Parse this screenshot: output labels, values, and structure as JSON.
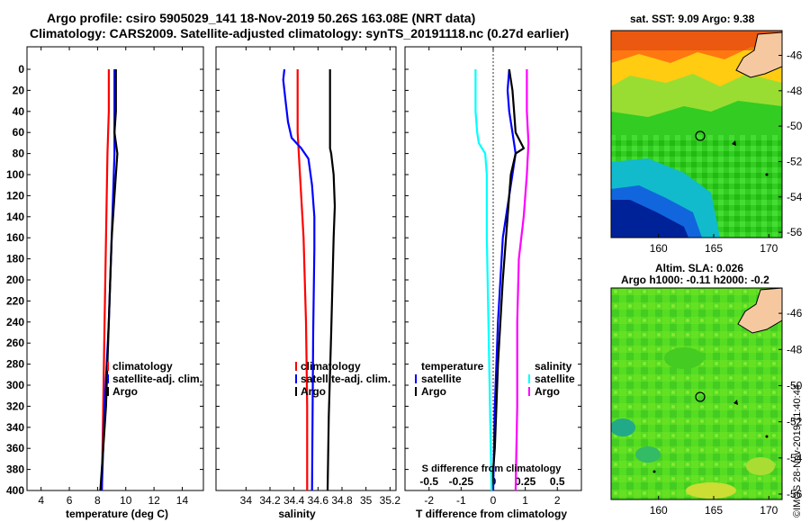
{
  "title_line1": "Argo profile: csiro 5905029_141 18-Nov-2019 50.26S 163.08E (NRT data)",
  "title_line2": "Climatology: CARS2009. Satellite-adjusted climatology: synTS_20191118.nc (0.27d earlier)",
  "depth_ticks": [
    0,
    20,
    40,
    60,
    80,
    100,
    120,
    140,
    160,
    180,
    200,
    220,
    240,
    260,
    280,
    300,
    320,
    340,
    360,
    380,
    400
  ],
  "colors": {
    "red": "#ff0000",
    "blue": "#0000ff",
    "black": "#000000",
    "cyan": "#00ffff",
    "magenta": "#ff00ff"
  },
  "chart_data": [
    {
      "type": "line",
      "xlabel": "temperature (deg C)",
      "ylabel": "depth",
      "xlim": [
        3,
        15.5
      ],
      "ylim": [
        400,
        0
      ],
      "xticks": [
        4,
        6,
        8,
        10,
        12,
        14
      ],
      "legend": [
        "climatology",
        "satellite-adj. clim.",
        "Argo"
      ],
      "series": [
        {
          "name": "climatology",
          "color": "#ff0000",
          "depth": [
            0,
            40,
            80,
            160,
            240,
            320,
            400
          ],
          "values": [
            8.8,
            8.8,
            8.7,
            8.6,
            8.5,
            8.4,
            8.3
          ]
        },
        {
          "name": "satellite-adj. clim.",
          "color": "#0000ff",
          "depth": [
            0,
            40,
            80,
            160,
            240,
            320,
            400
          ],
          "values": [
            9.2,
            9.2,
            9.2,
            9.0,
            8.8,
            8.5,
            8.3
          ]
        },
        {
          "name": "Argo",
          "color": "#000000",
          "depth": [
            0,
            40,
            60,
            80,
            120,
            160,
            240,
            320,
            360,
            400
          ],
          "values": [
            9.3,
            9.3,
            9.2,
            9.4,
            9.2,
            9.0,
            8.8,
            8.6,
            8.4,
            8.2
          ]
        }
      ]
    },
    {
      "type": "line",
      "xlabel": "salinity",
      "ylabel": "depth",
      "xlim": [
        33.75,
        35.25
      ],
      "ylim": [
        400,
        0
      ],
      "xticks": [
        34,
        34.2,
        34.4,
        34.6,
        34.8,
        35,
        35.2
      ],
      "xtick_labels": [
        "34",
        "34.2",
        "34.4",
        "34.6",
        "34.8",
        "35",
        "35.2"
      ],
      "legend": [
        "climatology",
        "satellite-adj. clim.",
        "Argo"
      ],
      "series": [
        {
          "name": "climatology",
          "color": "#ff0000",
          "depth": [
            0,
            40,
            60,
            80,
            100,
            140,
            160,
            240,
            320,
            400
          ],
          "values": [
            34.43,
            34.43,
            34.43,
            34.44,
            34.45,
            34.47,
            34.48,
            34.5,
            34.51,
            34.51
          ]
        },
        {
          "name": "satellite-adj. clim.",
          "color": "#0000ff",
          "depth": [
            0,
            10,
            30,
            50,
            65,
            75,
            85,
            110,
            140,
            170,
            250,
            400
          ],
          "values": [
            34.32,
            34.31,
            34.33,
            34.35,
            34.38,
            34.46,
            34.52,
            34.55,
            34.57,
            34.57,
            34.56,
            34.55
          ]
        },
        {
          "name": "Argo",
          "color": "#000000",
          "depth": [
            0,
            50,
            75,
            80,
            100,
            130,
            160,
            250,
            330,
            400
          ],
          "values": [
            34.7,
            34.7,
            34.7,
            34.71,
            34.73,
            34.74,
            34.73,
            34.71,
            34.69,
            34.68
          ]
        }
      ]
    },
    {
      "type": "line",
      "xlabel": "T difference from climatology",
      "ylabel": "depth",
      "xlim": [
        -2.75,
        2.75
      ],
      "ylim": [
        400,
        0
      ],
      "xticks": [
        -2,
        -1,
        0,
        1,
        2
      ],
      "xtick_labels": [
        "-2",
        "-1",
        "0",
        "1",
        "2"
      ],
      "secondary_xlabel": "S difference from climatology",
      "secondary_xticks": [
        "-0.5",
        "-0.25",
        "0",
        "0.25",
        "0.5"
      ],
      "legend_temperature": {
        "title": "temperature",
        "items": [
          "satellite",
          "Argo"
        ]
      },
      "legend_salinity": {
        "title": "salinity",
        "items": [
          "satellite",
          "Argo"
        ]
      },
      "series": [
        {
          "name": "T satellite",
          "color": "#0000ff",
          "depth": [
            0,
            20,
            40,
            60,
            80,
            120,
            160,
            240,
            320,
            400
          ],
          "values": [
            0.5,
            0.45,
            0.5,
            0.6,
            0.7,
            0.5,
            0.3,
            0.15,
            0.05,
            0.0
          ]
        },
        {
          "name": "T Argo",
          "color": "#000000",
          "depth": [
            0,
            20,
            40,
            60,
            75,
            80,
            100,
            140,
            200,
            280,
            360,
            400
          ],
          "values": [
            0.5,
            0.6,
            0.65,
            0.7,
            0.95,
            0.7,
            0.55,
            0.45,
            0.3,
            0.15,
            0.05,
            -0.05
          ]
        },
        {
          "name": "S satellite",
          "color": "#00ffff",
          "depth": [
            0,
            20,
            40,
            60,
            70,
            80,
            100,
            160,
            240,
            320,
            400
          ],
          "values": [
            -0.55,
            -0.55,
            -0.55,
            -0.5,
            -0.45,
            -0.25,
            -0.2,
            -0.2,
            -0.15,
            -0.1,
            -0.05
          ]
        },
        {
          "name": "S Argo",
          "color": "#ff00ff",
          "depth": [
            0,
            40,
            70,
            100,
            140,
            180,
            240,
            320,
            400
          ],
          "values": [
            1.05,
            1.05,
            1.1,
            1.05,
            0.95,
            0.8,
            0.75,
            0.75,
            0.7
          ]
        }
      ]
    },
    {
      "type": "heatmap",
      "title": "sat. SST: 9.09 Argo: 9.38",
      "xticks": [
        160,
        165,
        170
      ],
      "yticks": [
        -46,
        -48,
        -50,
        -52,
        -54,
        -56
      ],
      "xlim": [
        155.7,
        171.2
      ],
      "ylim": [
        -56.3,
        -44.6
      ],
      "marker": {
        "lon": 163.08,
        "lat": -50.26
      }
    },
    {
      "type": "heatmap",
      "title_line1": "Altim. SLA: 0.026",
      "title_line2": "Argo h1000: -0.11 h2000: -0.2",
      "xticks": [
        160,
        165,
        170
      ],
      "yticks": [
        -46,
        -48,
        -50,
        -52,
        -54,
        -56
      ],
      "xlim": [
        155.7,
        171.2
      ],
      "ylim": [
        -56.3,
        -44.6
      ],
      "marker": {
        "lon": 163.08,
        "lat": -50.26
      }
    }
  ],
  "stamp": "©IMOS 28-Nov-2019 11:40:44"
}
